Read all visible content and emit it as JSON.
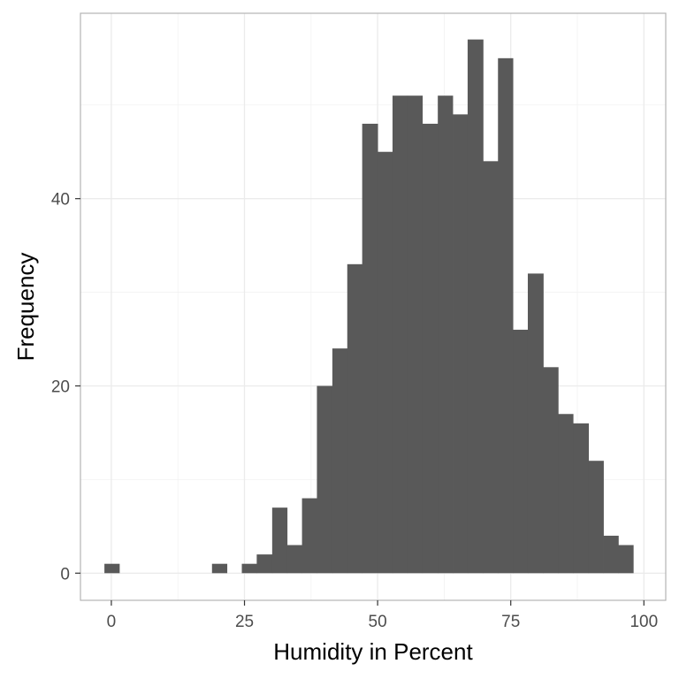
{
  "chart_data": {
    "type": "bar",
    "title": "",
    "xlabel": "Humidity in Percent",
    "ylabel": "Frequency",
    "x_ticks": [
      0,
      25,
      50,
      75,
      100
    ],
    "y_ticks": [
      0,
      20,
      40
    ],
    "xlim": [
      -5.8,
      104.1
    ],
    "ylim": [
      -2.9,
      59.8
    ],
    "bar_color": "#595959",
    "grid": true,
    "bins": [
      {
        "x0": -1.3,
        "x1": 1.5,
        "count": 1
      },
      {
        "x0": 18.9,
        "x1": 21.7,
        "count": 1
      },
      {
        "x0": 24.5,
        "x1": 27.3,
        "count": 1
      },
      {
        "x0": 27.3,
        "x1": 30.2,
        "count": 2
      },
      {
        "x0": 30.2,
        "x1": 33.0,
        "count": 7
      },
      {
        "x0": 33.0,
        "x1": 35.8,
        "count": 3
      },
      {
        "x0": 35.8,
        "x1": 38.6,
        "count": 8
      },
      {
        "x0": 38.6,
        "x1": 41.5,
        "count": 20
      },
      {
        "x0": 41.5,
        "x1": 44.3,
        "count": 24
      },
      {
        "x0": 44.3,
        "x1": 47.1,
        "count": 33
      },
      {
        "x0": 47.1,
        "x1": 50.0,
        "count": 48
      },
      {
        "x0": 50.0,
        "x1": 52.8,
        "count": 45
      },
      {
        "x0": 52.8,
        "x1": 55.6,
        "count": 51
      },
      {
        "x0": 55.6,
        "x1": 58.4,
        "count": 51
      },
      {
        "x0": 58.4,
        "x1": 61.3,
        "count": 48
      },
      {
        "x0": 61.3,
        "x1": 64.1,
        "count": 51
      },
      {
        "x0": 64.1,
        "x1": 66.9,
        "count": 49
      },
      {
        "x0": 66.9,
        "x1": 69.8,
        "count": 57
      },
      {
        "x0": 69.8,
        "x1": 72.6,
        "count": 44
      },
      {
        "x0": 72.6,
        "x1": 75.4,
        "count": 55
      },
      {
        "x0": 75.4,
        "x1": 78.2,
        "count": 26
      },
      {
        "x0": 78.2,
        "x1": 81.1,
        "count": 32
      },
      {
        "x0": 81.1,
        "x1": 83.9,
        "count": 22
      },
      {
        "x0": 83.9,
        "x1": 86.7,
        "count": 17
      },
      {
        "x0": 86.7,
        "x1": 89.6,
        "count": 16
      },
      {
        "x0": 89.6,
        "x1": 92.4,
        "count": 12
      },
      {
        "x0": 92.4,
        "x1": 95.2,
        "count": 4
      },
      {
        "x0": 95.2,
        "x1": 98.0,
        "count": 3
      }
    ]
  }
}
